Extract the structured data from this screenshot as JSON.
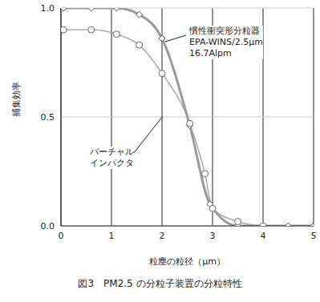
{
  "chart_data": {
    "type": "line",
    "title": "図3　PM2.5 の分粒子装置の分粒特性",
    "x_label": "粒塵の粒径（μm）",
    "y_label": "捕集効率",
    "xlim": [
      0,
      5
    ],
    "xticks": [
      0,
      1,
      2,
      3,
      4,
      5
    ],
    "ylim": [
      0,
      1
    ],
    "yticks": [
      {
        "value": 0,
        "label": "0.0"
      },
      {
        "value": 0.5,
        "label": "0.5"
      },
      {
        "value": 1,
        "label": "1.0"
      }
    ],
    "grid": true,
    "annotations": [
      {
        "lines": [
          "慣性衝突形分粒器",
          "EPA-WINS/2.5μm",
          "16.7Alpm"
        ]
      },
      {
        "lines": [
          "バーチャル",
          "インパクタ"
        ]
      }
    ],
    "series": [
      {
        "color": "#9a9a9a",
        "marker": "diamond",
        "line_style": "thick",
        "x": [
          0.05,
          0.6,
          1.1,
          1.55,
          2.0,
          2.55,
          2.95,
          3.5,
          4.0,
          4.5,
          5.0
        ],
        "values": [
          1.0,
          1.0,
          1.0,
          0.97,
          0.86,
          0.46,
          0.1,
          0.0,
          0.0,
          0.0,
          0.0
        ]
      },
      {
        "color": "#a0a0a0",
        "marker": "circle",
        "line_style": "solid",
        "x": [
          0.05,
          0.6,
          1.1,
          1.55,
          2.0,
          2.55,
          2.85,
          3.0,
          3.5,
          4.0
        ],
        "values": [
          0.9,
          0.9,
          0.88,
          0.83,
          0.7,
          0.47,
          0.24,
          0.08,
          0.02,
          0.0
        ]
      }
    ]
  }
}
